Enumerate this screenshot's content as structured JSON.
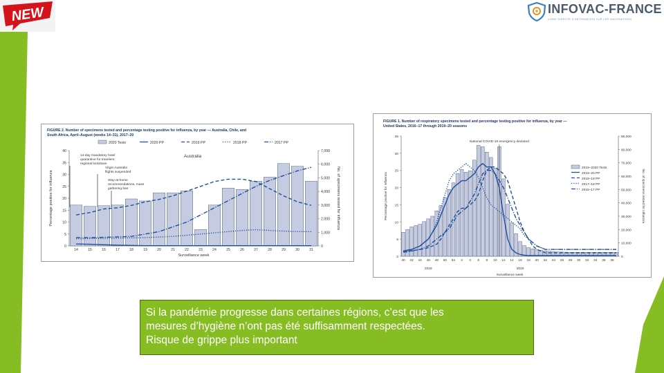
{
  "colors": {
    "accent_green": "#86bd23",
    "badge_red": "#d4141c",
    "bar_fill": "#c5cbe0",
    "line_blue": "#1f4f9c"
  },
  "badge": {
    "text": "NEW"
  },
  "logo": {
    "name": "INFOVAC-FRANCE",
    "tagline": "LIGNE DIRECTE D'INFORMATION SUR LES VACCINATIONS"
  },
  "caption": {
    "lines": [
      "Si la pandémie progresse dans certaines régions, c’est que les",
      "mesures d’hygiène n’ont pas été suffisamment respectées.",
      "Risque de grippe plus important"
    ]
  },
  "chart_data": [
    {
      "type": "bar",
      "title": "FIGURE 2. Number of specimens tested and percentage testing positive for influenza, by year — Australia, Chile, and South Africa, April–August (weeks 14–31), 2017–20",
      "region_label": "Australia",
      "xlabel": "Surveillance week",
      "ylabel": "Percentage positive for influenza",
      "ylabel_right": "No. of specimens tested for influenza",
      "ylim": [
        0,
        40
      ],
      "ylim_right": [
        0,
        7000
      ],
      "yticks": [
        0,
        5,
        10,
        15,
        20,
        25,
        30,
        35,
        40
      ],
      "yticks_right": [
        "0",
        "1,000",
        "2,000",
        "3,000",
        "4,000",
        "5,000",
        "6,000",
        "7,000"
      ],
      "categories": [
        "14",
        "15",
        "16",
        "17",
        "18",
        "19",
        "20",
        "21",
        "22",
        "23",
        "24",
        "25",
        "26",
        "27",
        "28",
        "29",
        "30",
        "31"
      ],
      "bars": {
        "name": "2020 Tests",
        "values": [
          3000,
          2900,
          2950,
          3000,
          3450,
          3300,
          3900,
          3900,
          4050,
          1200,
          3000,
          4250,
          4150,
          4750,
          5050,
          6050,
          5850,
          4750
        ]
      },
      "series": [
        {
          "name": "2020 PP",
          "style": "solid",
          "values": [
            0.8,
            0.7,
            0.5,
            0.3,
            0.2,
            0.1,
            0.1,
            0.1,
            0.1,
            0.1,
            0.1,
            0.1,
            0.1,
            0.1,
            0.1,
            0.1,
            0.1,
            0.1
          ]
        },
        {
          "name": "2019 PP",
          "style": "dash",
          "values": [
            13,
            14,
            15.5,
            16,
            17,
            18.5,
            19.5,
            21,
            23,
            25,
            27,
            28,
            28,
            27,
            24,
            21,
            18.5,
            17
          ]
        },
        {
          "name": "2018 PP",
          "style": "dot",
          "values": [
            3,
            3.1,
            3.2,
            3.3,
            3.4,
            3.5,
            3.7,
            4,
            4.5,
            5,
            5.5,
            6,
            6.5,
            6.8,
            6.5,
            6.2,
            6,
            6
          ]
        },
        {
          "name": "2017 PP",
          "style": "dashdot",
          "values": [
            3.5,
            3.5,
            3.6,
            3.8,
            4,
            5,
            6,
            8,
            10,
            13,
            16,
            19,
            22,
            25,
            27.5,
            29.5,
            31.5,
            33
          ]
        }
      ],
      "annotations": [
        "14-day mandatory hotel quarantine for travelers; regional lockdown",
        "Virgin Australia flights suspended",
        "Stay-at-home recommendations, mass gathering ban"
      ]
    },
    {
      "type": "bar",
      "title": "FIGURE 1. Number of respiratory specimens tested and percentage testing positive for influenza, by year — United States, 2016–17 through 2019–20 seasons",
      "annotation": "National COVID-19 emergency declared",
      "xlabel": "Surveillance week",
      "year_labels": [
        "2019",
        "2020"
      ],
      "ylabel": "Percentage positive for influenza",
      "ylabel_right": "No. of specimens tested for influenza",
      "ylim": [
        0,
        35
      ],
      "ylim_right": [
        0,
        90000
      ],
      "yticks": [
        0,
        5,
        10,
        15,
        20,
        25,
        30,
        35
      ],
      "yticks_right": [
        "0",
        "10,000",
        "20,000",
        "30,000",
        "40,000",
        "50,000",
        "60,000",
        "70,000",
        "80,000",
        "90,000"
      ],
      "categories": [
        "40",
        "41",
        "42",
        "43",
        "44",
        "45",
        "46",
        "47",
        "48",
        "49",
        "50",
        "51",
        "52",
        "1",
        "2",
        "3",
        "4",
        "5",
        "6",
        "7",
        "8",
        "9",
        "10",
        "11",
        "12",
        "13",
        "14",
        "15",
        "16",
        "17",
        "18",
        "19",
        "20",
        "21",
        "22",
        "23",
        "24",
        "25",
        "26",
        "27",
        "28",
        "29",
        "30",
        "31",
        "32",
        "33",
        "34",
        "35",
        "36",
        "37",
        "38",
        "39"
      ],
      "xtick_labels": [
        "40",
        "42",
        "44",
        "46",
        "48",
        "50",
        "52",
        "2",
        "4",
        "6",
        "8",
        "10",
        "12",
        "14",
        "16",
        "18",
        "20",
        "22",
        "24",
        "26",
        "28",
        "30",
        "32",
        "34",
        "36",
        "38"
      ],
      "bars": {
        "name": "2019–2020 Tests",
        "values": [
          18000,
          20000,
          22000,
          23000,
          24000,
          26000,
          28000,
          30000,
          34000,
          38000,
          44000,
          50000,
          55000,
          62000,
          65000,
          63000,
          64000,
          72000,
          83000,
          82000,
          78000,
          74000,
          66000,
          82000,
          58000,
          39000,
          25000,
          17000,
          11000,
          8000,
          6500,
          5500,
          5000,
          4500,
          4000,
          3800,
          3500,
          3300,
          3200,
          3100,
          3000,
          3000,
          3000,
          3000,
          3000,
          3000,
          3000,
          3000,
          3000,
          3000,
          3000,
          3000
        ]
      },
      "series": [
        {
          "name": "2019–20 PP",
          "style": "solid",
          "values": [
            1.5,
            1.8,
            2,
            2.5,
            3,
            4,
            5,
            7,
            9,
            12,
            15,
            18,
            20,
            21,
            22,
            22,
            23,
            24,
            26,
            27,
            26,
            26,
            24,
            20,
            12,
            5,
            2,
            1,
            0.5,
            0.3,
            0.2,
            0.2,
            0.2,
            0.2,
            0.2,
            0.2,
            0.2,
            0.2,
            0.2,
            0.2,
            0.2,
            0.2,
            0.2,
            0.2,
            0.2,
            0.2,
            0.2,
            0.2,
            0.2,
            0.2,
            0.2,
            0.2
          ]
        },
        {
          "name": "2018–19 PP",
          "style": "dash",
          "values": [
            1.5,
            1.5,
            1.6,
            1.8,
            2,
            2.2,
            2.5,
            3,
            3.5,
            5,
            7,
            9,
            11,
            13,
            14,
            14,
            15,
            16,
            18,
            22,
            25,
            26,
            26,
            25,
            24,
            22,
            18,
            14,
            10,
            7,
            5,
            3,
            2,
            1.5,
            1,
            1,
            1,
            1,
            1,
            1,
            1,
            1,
            1,
            1,
            1,
            1,
            1,
            1,
            1,
            1,
            1,
            1
          ]
        },
        {
          "name": "2017–18 PP",
          "style": "dot",
          "values": [
            1.5,
            1.5,
            2,
            2.5,
            3,
            4,
            5,
            7,
            10,
            14,
            18,
            22,
            24,
            25,
            26,
            27,
            26,
            25,
            23,
            20,
            17,
            15,
            14,
            13,
            12,
            11,
            10,
            9,
            8,
            6,
            5,
            4,
            3,
            2.5,
            2,
            2,
            2,
            2,
            2,
            2,
            2,
            2,
            2,
            2,
            2,
            2,
            2,
            2,
            2,
            2,
            2,
            2
          ]
        },
        {
          "name": "2016–17 PP",
          "style": "dashdot",
          "values": [
            1.2,
            1.3,
            1.5,
            1.8,
            2,
            2.5,
            3,
            4,
            5,
            6,
            7,
            8,
            10,
            12,
            13,
            14,
            16,
            18,
            21,
            24,
            25,
            25,
            24,
            22,
            20,
            17,
            14,
            11,
            9,
            7,
            5,
            4,
            3,
            2.5,
            2,
            2,
            2,
            2,
            2,
            2,
            2,
            2,
            2,
            2,
            2,
            2,
            2,
            2,
            2,
            2,
            2,
            2
          ]
        }
      ]
    }
  ]
}
